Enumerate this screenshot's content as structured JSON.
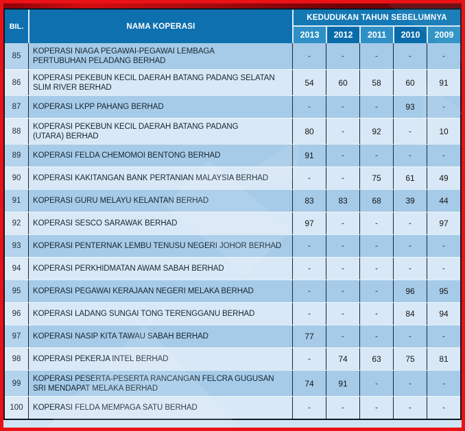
{
  "colors": {
    "frame_red": "#ea1216",
    "top_strip_red": "#a50a0e",
    "header_blue": "#0e70af",
    "year_header_light": "#2f90c5",
    "year_header_dark": "#0a6baa",
    "row_medium_blue": "#a6cbe9",
    "row_light_blue": "#d8e8f6",
    "dash_text": "#2f6397",
    "table_border": "#0c1824"
  },
  "table": {
    "headers": {
      "bil": "BIL.",
      "nama": "NAMA KOPERASI",
      "group": "KEDUDUKAN TAHUN SEBELUMNYA",
      "years": [
        "2013",
        "2012",
        "2011",
        "2010",
        "2009"
      ]
    },
    "rows": [
      {
        "bil": "85",
        "nama": "KOPERASI NIAGA PEGAWAI-PEGAWAI LEMBAGA\nPERTUBUHAN PELADANG BERHAD",
        "values": [
          "-",
          "-",
          "-",
          "-",
          "-"
        ]
      },
      {
        "bil": "86",
        "nama": "KOPERASI PEKEBUN KECIL DAERAH BATANG PADANG SELATAN\nSLIM RIVER BERHAD",
        "values": [
          "54",
          "60",
          "58",
          "60",
          "91"
        ]
      },
      {
        "bil": "87",
        "nama": "KOPERASI LKPP PAHANG BERHAD",
        "values": [
          "-",
          "-",
          "-",
          "93",
          "-"
        ]
      },
      {
        "bil": "88",
        "nama": "KOPERASI PEKEBUN KECIL DAERAH BATANG PADANG\n(UTARA) BERHAD",
        "values": [
          "80",
          "-",
          "92",
          "-",
          "10"
        ]
      },
      {
        "bil": "89",
        "nama": "KOPERASI FELDA CHEMOMOI BENTONG BERHAD",
        "values": [
          "91",
          "-",
          "-",
          "-",
          "-"
        ]
      },
      {
        "bil": "90",
        "nama": "KOPERASI KAKITANGAN BANK PERTANIAN MALAYSIA BERHAD",
        "values": [
          "-",
          "-",
          "75",
          "61",
          "49"
        ]
      },
      {
        "bil": "91",
        "nama": "KOPERASI GURU MELAYU KELANTAN BERHAD",
        "values": [
          "83",
          "83",
          "68",
          "39",
          "44"
        ]
      },
      {
        "bil": "92",
        "nama": "KOPERASI SESCO SARAWAK BERHAD",
        "values": [
          "97",
          "-",
          "-",
          "-",
          "97"
        ]
      },
      {
        "bil": "93",
        "nama": "KOPERASI PENTERNAK LEMBU TENUSU NEGERI JOHOR BERHAD",
        "values": [
          "-",
          "-",
          "-",
          "-",
          "-"
        ]
      },
      {
        "bil": "94",
        "nama": "KOPERASI PERKHIDMATAN AWAM SABAH BERHAD",
        "values": [
          "-",
          "-",
          "-",
          "-",
          "-"
        ]
      },
      {
        "bil": "95",
        "nama": "KOPERASI PEGAWAI KERAJAAN NEGERI MELAKA BERHAD",
        "values": [
          "-",
          "-",
          "-",
          "96",
          "95"
        ]
      },
      {
        "bil": "96",
        "nama": "KOPERASI LADANG SUNGAI TONG TERENGGANU BERHAD",
        "values": [
          "-",
          "-",
          "-",
          "84",
          "94"
        ]
      },
      {
        "bil": "97",
        "nama": "KOPERASI NASIP KITA TAWAU SABAH BERHAD",
        "values": [
          "77",
          "-",
          "-",
          "-",
          "-"
        ]
      },
      {
        "bil": "98",
        "nama": "KOPERASI PEKERJA INTEL BERHAD",
        "values": [
          "-",
          "74",
          "63",
          "75",
          "81"
        ]
      },
      {
        "bil": "99",
        "nama": "KOPERASI PESERTA-PESERTA RANCANGAN FELCRA GUGUSAN\nSRI MENDAPAT MELAKA BERHAD",
        "values": [
          "74",
          "91",
          "-",
          "-",
          "-"
        ]
      },
      {
        "bil": "100",
        "nama": "KOPERASI FELDA MEMPAGA SATU BERHAD",
        "values": [
          "-",
          "-",
          "-",
          "-",
          "-"
        ]
      }
    ]
  }
}
